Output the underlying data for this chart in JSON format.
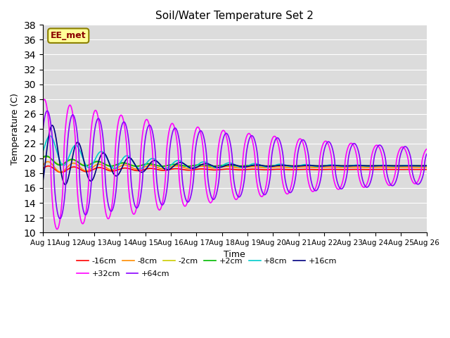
{
  "title": "Soil/Water Temperature Set 2",
  "xlabel": "Time",
  "ylabel": "Temperature (C)",
  "ylim": [
    10,
    38
  ],
  "yticks": [
    10,
    12,
    14,
    16,
    18,
    20,
    22,
    24,
    26,
    28,
    30,
    32,
    34,
    36,
    38
  ],
  "xtick_labels": [
    "Aug 11",
    "Aug 12",
    "Aug 13",
    "Aug 14",
    "Aug 15",
    "Aug 16",
    "Aug 17",
    "Aug 18",
    "Aug 19",
    "Aug 20",
    "Aug 21",
    "Aug 22",
    "Aug 23",
    "Aug 24",
    "Aug 25",
    "Aug 26"
  ],
  "watermark_text": "EE_met",
  "watermark_color": "#8B0000",
  "watermark_bg": "#FFFF99",
  "background_color": "#DCDCDC",
  "series": [
    {
      "label": "-16cm",
      "color": "#FF0000",
      "lw": 1.2
    },
    {
      "label": "-8cm",
      "color": "#FF8C00",
      "lw": 1.2
    },
    {
      "label": "-2cm",
      "color": "#CCCC00",
      "lw": 1.2
    },
    {
      "label": "+2cm",
      "color": "#00BB00",
      "lw": 1.2
    },
    {
      "label": "+8cm",
      "color": "#00CCCC",
      "lw": 1.2
    },
    {
      "label": "+16cm",
      "color": "#000080",
      "lw": 1.2
    },
    {
      "label": "+32cm",
      "color": "#FF00FF",
      "lw": 1.2
    },
    {
      "label": "+64cm",
      "color": "#8B00FF",
      "lw": 1.2
    }
  ]
}
